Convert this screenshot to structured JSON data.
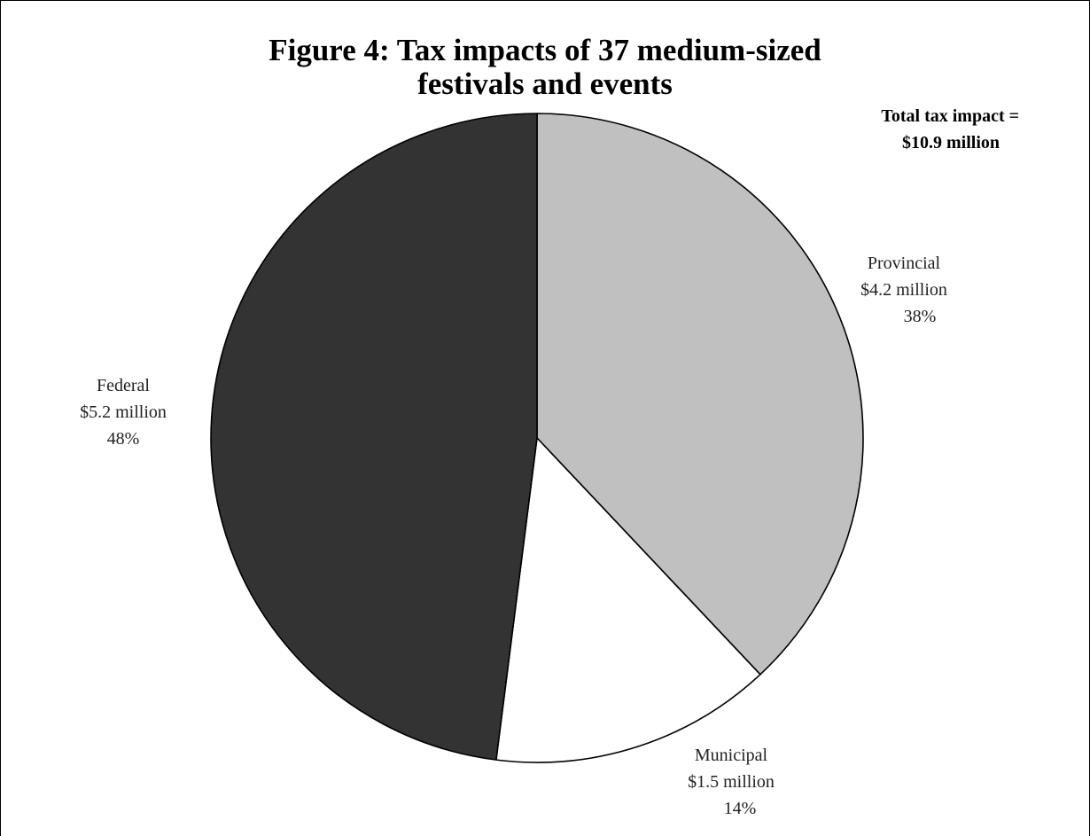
{
  "chart_data": {
    "type": "pie",
    "title_lines": [
      "Figure 4: Tax impacts of 37 medium-sized",
      "festivals and events"
    ],
    "annotation_lines": [
      "Total tax impact =",
      "$10.9 million"
    ],
    "start_angle_deg": 0,
    "direction": "clockwise",
    "slices": [
      {
        "name": "Provincial",
        "amount_label": "$4.2 million",
        "percent_label": "38%",
        "value": 4.2,
        "percent": 38,
        "color": "#c0c0c0"
      },
      {
        "name": "Municipal",
        "amount_label": "$1.5 million",
        "percent_label": "14%",
        "value": 1.5,
        "percent": 14,
        "color": "#ffffff"
      },
      {
        "name": "Federal",
        "amount_label": "$5.2 million",
        "percent_label": "48%",
        "value": 5.2,
        "percent": 48,
        "color": "#333333"
      }
    ]
  }
}
